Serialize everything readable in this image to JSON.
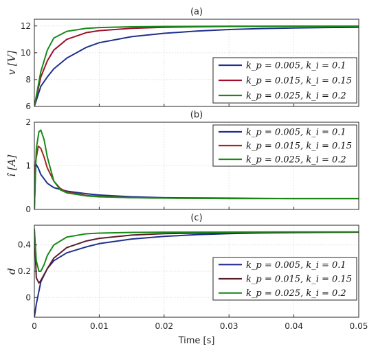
{
  "chart_data": [
    {
      "type": "line",
      "title": "(a)",
      "xlabel": "",
      "ylabel": "v [V]",
      "xlim": [
        0,
        0.05
      ],
      "ylim": [
        6,
        12.5
      ],
      "yticks": [
        6,
        8,
        10,
        12
      ],
      "xtick_labels_shown": false,
      "grid": true,
      "legend_position": "bottom-right",
      "series": [
        {
          "name": "k_p = 0.005, k_i = 0.1",
          "color": "#1f2f8c",
          "x": [
            0,
            0.001,
            0.002,
            0.003,
            0.005,
            0.008,
            0.01,
            0.015,
            0.02,
            0.025,
            0.03,
            0.035,
            0.04,
            0.045,
            0.05
          ],
          "y": [
            6,
            7.5,
            8.2,
            8.8,
            9.6,
            10.4,
            10.75,
            11.2,
            11.45,
            11.62,
            11.73,
            11.8,
            11.85,
            11.88,
            11.9
          ]
        },
        {
          "name": "k_p = 0.015, k_i = 0.15",
          "color": "#a0102a",
          "x": [
            0,
            0.001,
            0.002,
            0.003,
            0.005,
            0.008,
            0.01,
            0.015,
            0.02,
            0.025,
            0.03,
            0.035,
            0.04,
            0.045,
            0.05
          ],
          "y": [
            6,
            8.2,
            9.4,
            10.2,
            11.0,
            11.5,
            11.65,
            11.82,
            11.9,
            11.94,
            11.96,
            11.97,
            11.98,
            11.98,
            11.98
          ]
        },
        {
          "name": "k_p = 0.025, k_i = 0.2",
          "color": "#168a16",
          "x": [
            0,
            0.001,
            0.002,
            0.003,
            0.005,
            0.008,
            0.01,
            0.015,
            0.02,
            0.025,
            0.03,
            0.035,
            0.04,
            0.045,
            0.05
          ],
          "y": [
            6,
            8.6,
            10.2,
            11.1,
            11.6,
            11.82,
            11.88,
            11.94,
            11.96,
            11.97,
            11.98,
            11.98,
            11.98,
            11.98,
            11.98
          ]
        }
      ]
    },
    {
      "type": "line",
      "title": "(b)",
      "xlabel": "",
      "ylabel": "î [A]",
      "xlim": [
        0,
        0.05
      ],
      "ylim": [
        0,
        2
      ],
      "yticks": [
        0,
        1,
        2
      ],
      "xtick_labels_shown": false,
      "grid": true,
      "legend_position": "top-right",
      "series": [
        {
          "name": "k_p = 0.005, k_i = 0.1",
          "color": "#1f2f8c",
          "x": [
            0,
            0.0002,
            0.0006,
            0.001,
            0.002,
            0.003,
            0.005,
            0.008,
            0.01,
            0.015,
            0.02,
            0.03,
            0.04,
            0.05
          ],
          "y": [
            0,
            1.05,
            0.95,
            0.8,
            0.6,
            0.5,
            0.42,
            0.36,
            0.33,
            0.29,
            0.27,
            0.26,
            0.25,
            0.25
          ]
        },
        {
          "name": "k_p = 0.015, k_i = 0.15",
          "color": "#a0281e",
          "x": [
            0,
            0.0002,
            0.0006,
            0.001,
            0.0015,
            0.002,
            0.003,
            0.004,
            0.005,
            0.008,
            0.01,
            0.015,
            0.02,
            0.03,
            0.04,
            0.05
          ],
          "y": [
            0,
            1.1,
            1.45,
            1.4,
            1.2,
            0.95,
            0.65,
            0.48,
            0.4,
            0.32,
            0.3,
            0.27,
            0.26,
            0.25,
            0.25,
            0.25
          ]
        },
        {
          "name": "k_p = 0.025, k_i = 0.2",
          "color": "#168a16",
          "x": [
            0,
            0.0003,
            0.0007,
            0.001,
            0.0015,
            0.002,
            0.003,
            0.004,
            0.005,
            0.008,
            0.01,
            0.015,
            0.02,
            0.03,
            0.04,
            0.05
          ],
          "y": [
            0,
            1.4,
            1.78,
            1.82,
            1.6,
            1.2,
            0.65,
            0.45,
            0.38,
            0.31,
            0.29,
            0.27,
            0.26,
            0.25,
            0.25,
            0.25
          ]
        }
      ]
    },
    {
      "type": "line",
      "title": "(c)",
      "xlabel": "Time [s]",
      "ylabel": "d",
      "xlim": [
        0,
        0.05
      ],
      "ylim": [
        -0.15,
        0.55
      ],
      "yticks": [
        0,
        0.2,
        0.4
      ],
      "xticks": [
        0,
        0.01,
        0.02,
        0.03,
        0.04,
        0.05
      ],
      "xtick_labels_shown": true,
      "grid": true,
      "legend_position": "bottom-right",
      "series": [
        {
          "name": "k_p = 0.005, k_i = 0.1",
          "color": "#1f2f8c",
          "x": [
            0,
            0.0003,
            0.001,
            0.002,
            0.003,
            0.005,
            0.008,
            0.01,
            0.015,
            0.02,
            0.025,
            0.03,
            0.035,
            0.04,
            0.045,
            0.05
          ],
          "y": [
            -0.15,
            -0.05,
            0.12,
            0.22,
            0.28,
            0.34,
            0.385,
            0.41,
            0.445,
            0.465,
            0.478,
            0.486,
            0.491,
            0.494,
            0.496,
            0.497
          ]
        },
        {
          "name": "k_p = 0.015, k_i = 0.15",
          "color": "#5a1e2a",
          "x": [
            0,
            0.0003,
            0.0007,
            0.001,
            0.002,
            0.003,
            0.005,
            0.008,
            0.01,
            0.015,
            0.02,
            0.03,
            0.04,
            0.05
          ],
          "y": [
            0.52,
            0.15,
            0.11,
            0.13,
            0.22,
            0.3,
            0.38,
            0.43,
            0.45,
            0.475,
            0.486,
            0.494,
            0.497,
            0.498
          ]
        },
        {
          "name": "k_p = 0.025, k_i = 0.2",
          "color": "#168a16",
          "x": [
            0,
            0.0003,
            0.0007,
            0.001,
            0.0015,
            0.002,
            0.003,
            0.005,
            0.008,
            0.01,
            0.015,
            0.02,
            0.03,
            0.04,
            0.05
          ],
          "y": [
            0.52,
            0.28,
            0.2,
            0.2,
            0.25,
            0.32,
            0.4,
            0.46,
            0.485,
            0.49,
            0.495,
            0.497,
            0.498,
            0.499,
            0.499
          ]
        }
      ]
    }
  ]
}
